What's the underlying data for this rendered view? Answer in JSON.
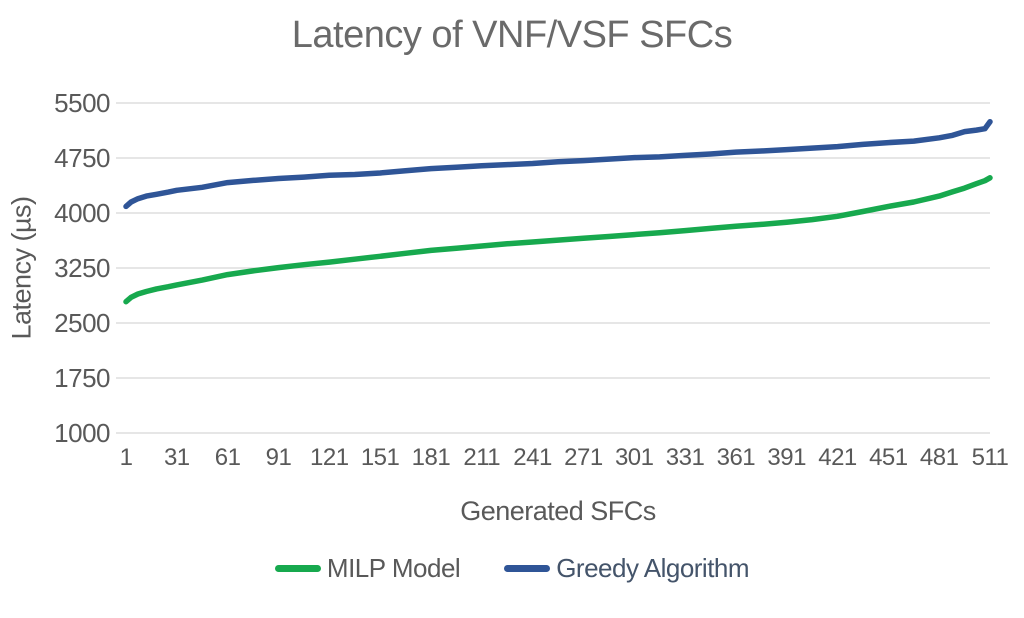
{
  "chart": {
    "title": "Latency of VNF/VSF SFCs",
    "y_axis": {
      "title": "Latency (µs)"
    },
    "x_axis": {
      "title": "Generated SFCs"
    }
  },
  "legend": [
    {
      "label": "MILP Model",
      "label_color": "#595959",
      "series_index": 0
    },
    {
      "label": "Greedy Algorithm",
      "label_color": "#44546a",
      "series_index": 1
    }
  ],
  "colors": {
    "gridline": "#d6d6d6",
    "title_text": "#6a6a6a",
    "axis_text": "#595959",
    "milp_green": "#17a94e",
    "greedy_blue": "#2f5597",
    "background": "#ffffff"
  },
  "chart_data": {
    "type": "line",
    "title": "Latency of VNF/VSF SFCs",
    "xlabel": "Generated SFCs",
    "ylabel": "Latency (µs)",
    "xlim": [
      1,
      511
    ],
    "ylim": [
      1000,
      5500
    ],
    "y_ticks": [
      5500,
      4750,
      4000,
      3250,
      2500,
      1750,
      1000
    ],
    "x_ticks": [
      1,
      31,
      61,
      91,
      121,
      151,
      181,
      211,
      241,
      271,
      301,
      331,
      361,
      391,
      421,
      451,
      481,
      511
    ],
    "grid": "horizontal",
    "legend_position": "bottom",
    "x": [
      1,
      4,
      8,
      13,
      19,
      26,
      31,
      46,
      61,
      76,
      91,
      106,
      121,
      136,
      151,
      166,
      181,
      196,
      211,
      226,
      241,
      256,
      271,
      286,
      301,
      316,
      331,
      346,
      361,
      376,
      391,
      406,
      421,
      436,
      451,
      466,
      481,
      489,
      496,
      503,
      508,
      511
    ],
    "series": [
      {
        "name": "MILP Model",
        "color": "#17a94e",
        "values": [
          2790,
          2850,
          2895,
          2930,
          2965,
          2995,
          3020,
          3085,
          3160,
          3210,
          3255,
          3295,
          3330,
          3370,
          3410,
          3450,
          3490,
          3520,
          3550,
          3580,
          3605,
          3630,
          3655,
          3680,
          3705,
          3730,
          3760,
          3790,
          3820,
          3845,
          3875,
          3910,
          3955,
          4020,
          4090,
          4150,
          4230,
          4290,
          4340,
          4400,
          4440,
          4480
        ]
      },
      {
        "name": "Greedy Algorithm",
        "color": "#2f5597",
        "values": [
          4090,
          4150,
          4195,
          4230,
          4255,
          4285,
          4310,
          4350,
          4415,
          4445,
          4470,
          4490,
          4515,
          4525,
          4545,
          4575,
          4605,
          4625,
          4645,
          4660,
          4675,
          4700,
          4715,
          4735,
          4755,
          4765,
          4785,
          4805,
          4830,
          4845,
          4865,
          4885,
          4905,
          4935,
          4960,
          4980,
          5025,
          5060,
          5110,
          5130,
          5150,
          5245
        ]
      }
    ]
  }
}
